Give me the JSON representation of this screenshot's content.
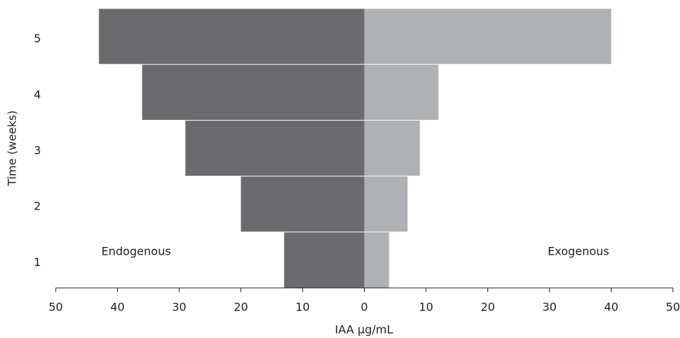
{
  "chart_data": {
    "type": "butterfly",
    "xlabel": "IAA μg/mL",
    "ylabel": "Time (weeks)",
    "categories": [
      "1",
      "2",
      "3",
      "4",
      "5"
    ],
    "series": [
      {
        "name": "Endogenous",
        "color": "#6b6b6d",
        "values": [
          13,
          20,
          29,
          36,
          43
        ]
      },
      {
        "name": "Exogenous",
        "color": "#b0b1b5",
        "values": [
          4,
          7,
          9,
          12,
          40
        ]
      }
    ],
    "xlim": [
      -50,
      50
    ],
    "xticks": [
      {
        "value": -50,
        "label": "50"
      },
      {
        "value": -40,
        "label": "40"
      },
      {
        "value": -30,
        "label": "30"
      },
      {
        "value": -20,
        "label": "20"
      },
      {
        "value": -10,
        "label": "10"
      },
      0,
      10,
      20,
      30,
      40,
      50
    ]
  }
}
